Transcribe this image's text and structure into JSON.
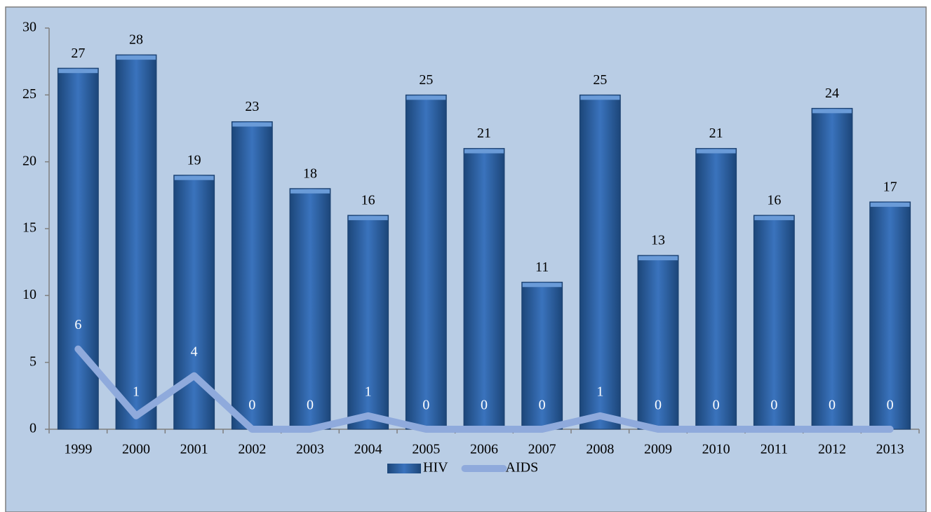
{
  "chart_data": {
    "type": "bar",
    "categories": [
      "1999",
      "2000",
      "2001",
      "2002",
      "2003",
      "2004",
      "2005",
      "2006",
      "2007",
      "2008",
      "2009",
      "2010",
      "2011",
      "2012",
      "2013"
    ],
    "series": [
      {
        "name": "HIV",
        "type": "bar",
        "color": "#2e5fa3",
        "values": [
          27,
          28,
          19,
          23,
          18,
          16,
          25,
          21,
          11,
          25,
          13,
          21,
          16,
          24,
          17
        ]
      },
      {
        "name": "AIDS",
        "type": "line",
        "color": "#8faadc",
        "values": [
          6,
          1,
          4,
          0,
          0,
          1,
          0,
          0,
          0,
          1,
          0,
          0,
          0,
          0,
          0
        ]
      }
    ],
    "ylim": [
      0,
      30
    ],
    "yticks": [
      0,
      5,
      10,
      15,
      20,
      25,
      30
    ],
    "legend": "bottom"
  }
}
